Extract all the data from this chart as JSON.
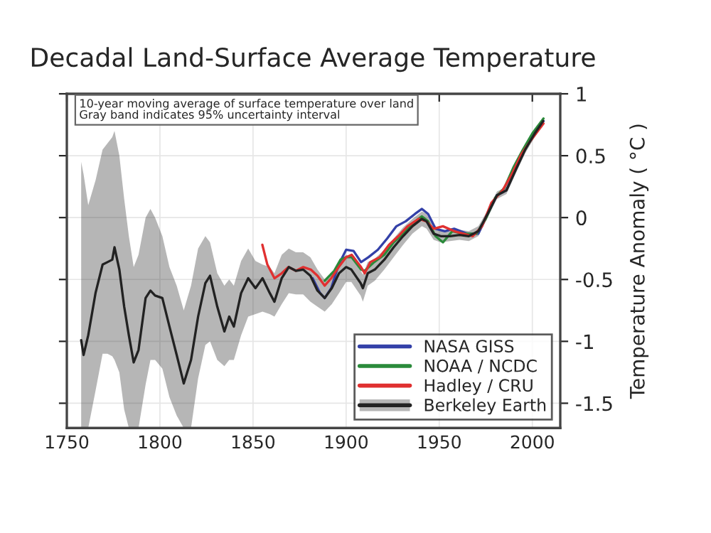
{
  "chart_data": {
    "type": "line",
    "title": "Decadal Land-Surface Average Temperature",
    "ylabel": "Temperature Anomaly ( °C )",
    "annotations": [
      "10-year moving average of surface temperature over land\nGray band indicates 95% uncertainty interval"
    ],
    "xlim": [
      1750,
      2015
    ],
    "xticks": [
      1750,
      1800,
      1850,
      1900,
      1950,
      2000
    ],
    "ylim": [
      -1.7,
      1
    ],
    "yticks": [
      -1.5,
      -1,
      -0.5,
      0,
      0.5,
      1
    ],
    "grid": true,
    "legend": "bottom right",
    "series": [
      {
        "name": "NASA GISS",
        "color": "#3340a8",
        "x": [
          1882,
          1886,
          1888.5,
          1892,
          1896,
          1900,
          1904,
          1908,
          1912,
          1917,
          1922,
          1927,
          1932,
          1937,
          1940.7,
          1944,
          1948,
          1953,
          1958,
          1965,
          1971,
          1976,
          1981,
          1986,
          1991,
          1996,
          2001,
          2006
        ],
        "values": [
          -0.49,
          -0.61,
          -0.65,
          -0.57,
          -0.38,
          -0.26,
          -0.27,
          -0.36,
          -0.32,
          -0.26,
          -0.17,
          -0.07,
          -0.03,
          0.03,
          0.07,
          0.03,
          -0.09,
          -0.11,
          -0.09,
          -0.13,
          -0.13,
          0.03,
          0.18,
          0.22,
          0.39,
          0.55,
          0.68,
          0.78
        ]
      },
      {
        "name": "NOAA / NCDC",
        "color": "#2a8a3a",
        "x": [
          1888.5,
          1893.6,
          1897,
          1900,
          1903,
          1908,
          1910,
          1915,
          1920.5,
          1925.5,
          1930.6,
          1935.6,
          1940.7,
          1944,
          1948,
          1952,
          1957,
          1963,
          1970,
          1975,
          1980,
          1985,
          1990,
          1995,
          2000,
          2005,
          2006
        ],
        "values": [
          -0.51,
          -0.43,
          -0.34,
          -0.32,
          -0.32,
          -0.42,
          -0.43,
          -0.36,
          -0.3,
          -0.2,
          -0.13,
          -0.05,
          0.01,
          -0.03,
          -0.15,
          -0.2,
          -0.11,
          -0.13,
          -0.13,
          -0.01,
          0.16,
          0.24,
          0.41,
          0.55,
          0.68,
          0.78,
          0.8
        ]
      },
      {
        "name": "Hadley / CRU",
        "color": "#e03030",
        "x": [
          1855,
          1857.7,
          1861.5,
          1865.4,
          1869,
          1873,
          1877,
          1881,
          1884.6,
          1888.5,
          1892,
          1896,
          1900,
          1903,
          1908,
          1910,
          1913,
          1918,
          1923,
          1928,
          1933,
          1939,
          1943,
          1947,
          1952,
          1958,
          1963,
          1968,
          1973,
          1978,
          1984,
          1989,
          1994,
          1999,
          2004,
          2006
        ],
        "values": [
          -0.22,
          -0.38,
          -0.49,
          -0.45,
          -0.4,
          -0.43,
          -0.4,
          -0.42,
          -0.47,
          -0.55,
          -0.49,
          -0.4,
          -0.32,
          -0.3,
          -0.4,
          -0.45,
          -0.36,
          -0.32,
          -0.22,
          -0.15,
          -0.07,
          -0.01,
          -0.03,
          -0.09,
          -0.07,
          -0.11,
          -0.13,
          -0.15,
          -0.07,
          0.12,
          0.22,
          0.35,
          0.51,
          0.62,
          0.72,
          0.76
        ]
      },
      {
        "name": "Berkeley Earth",
        "color": "#222222",
        "x": [
          1757.7,
          1759,
          1761.5,
          1765.4,
          1769.2,
          1771.8,
          1774.4,
          1775.6,
          1778.2,
          1780.8,
          1783.3,
          1785.9,
          1788.5,
          1792.3,
          1794.9,
          1797.4,
          1801.3,
          1805.1,
          1809,
          1812.8,
          1816.7,
          1820.5,
          1824.4,
          1826.9,
          1830.8,
          1834.6,
          1837.2,
          1839.7,
          1843.6,
          1847.4,
          1851.3,
          1855.1,
          1859,
          1861.5,
          1865.4,
          1869.2,
          1873,
          1876.9,
          1880.8,
          1884.6,
          1888.5,
          1892.3,
          1896.2,
          1900,
          1902.8,
          1907.8,
          1909,
          1911.6,
          1915.4,
          1920.5,
          1925.5,
          1930.6,
          1935.6,
          1940.7,
          1943.2,
          1947,
          1950.8,
          1955.8,
          1960.9,
          1965.9,
          1971,
          1976,
          1981,
          1986.1,
          1991.2,
          1996.2,
          2001.3,
          2005.8
        ],
        "values": [
          -0.99,
          -1.11,
          -0.95,
          -0.61,
          -0.38,
          -0.36,
          -0.34,
          -0.24,
          -0.42,
          -0.72,
          -0.95,
          -1.17,
          -1.07,
          -0.65,
          -0.59,
          -0.63,
          -0.65,
          -0.88,
          -1.11,
          -1.34,
          -1.15,
          -0.8,
          -0.53,
          -0.47,
          -0.72,
          -0.92,
          -0.8,
          -0.88,
          -0.61,
          -0.49,
          -0.57,
          -0.49,
          -0.61,
          -0.68,
          -0.49,
          -0.4,
          -0.43,
          -0.42,
          -0.47,
          -0.59,
          -0.65,
          -0.57,
          -0.45,
          -0.4,
          -0.42,
          -0.53,
          -0.57,
          -0.45,
          -0.42,
          -0.34,
          -0.24,
          -0.15,
          -0.07,
          -0.01,
          -0.03,
          -0.13,
          -0.15,
          -0.15,
          -0.14,
          -0.15,
          -0.11,
          0.03,
          0.18,
          0.22,
          0.39,
          0.55,
          0.68,
          0.78
        ],
        "lower": [
          -1.7,
          -1.7,
          -1.7,
          -1.4,
          -1.1,
          -1.1,
          -1.12,
          -1.15,
          -1.25,
          -1.55,
          -1.7,
          -1.7,
          -1.7,
          -1.35,
          -1.15,
          -1.15,
          -1.22,
          -1.45,
          -1.6,
          -1.7,
          -1.7,
          -1.3,
          -1.03,
          -1.0,
          -1.15,
          -1.2,
          -1.15,
          -1.15,
          -0.95,
          -0.8,
          -0.78,
          -0.76,
          -0.78,
          -0.8,
          -0.7,
          -0.61,
          -0.62,
          -0.62,
          -0.68,
          -0.72,
          -0.76,
          -0.7,
          -0.61,
          -0.52,
          -0.52,
          -0.63,
          -0.68,
          -0.55,
          -0.51,
          -0.42,
          -0.32,
          -0.22,
          -0.13,
          -0.07,
          -0.09,
          -0.18,
          -0.2,
          -0.19,
          -0.18,
          -0.19,
          -0.15,
          0.0,
          0.15,
          0.19,
          0.36,
          0.52,
          0.65,
          0.75
        ],
        "upper": [
          0.45,
          0.35,
          0.1,
          0.3,
          0.55,
          0.6,
          0.65,
          0.7,
          0.5,
          0.15,
          -0.15,
          -0.4,
          -0.3,
          0.0,
          0.07,
          0.0,
          -0.15,
          -0.4,
          -0.55,
          -0.75,
          -0.55,
          -0.25,
          -0.15,
          -0.2,
          -0.45,
          -0.55,
          -0.5,
          -0.55,
          -0.35,
          -0.25,
          -0.35,
          -0.38,
          -0.4,
          -0.45,
          -0.3,
          -0.25,
          -0.28,
          -0.28,
          -0.32,
          -0.42,
          -0.5,
          -0.45,
          -0.35,
          -0.3,
          -0.32,
          -0.43,
          -0.46,
          -0.36,
          -0.33,
          -0.26,
          -0.17,
          -0.08,
          -0.01,
          0.05,
          0.03,
          -0.08,
          -0.1,
          -0.11,
          -0.1,
          -0.11,
          -0.07,
          0.06,
          0.21,
          0.25,
          0.42,
          0.58,
          0.71,
          0.81
        ]
      }
    ]
  }
}
